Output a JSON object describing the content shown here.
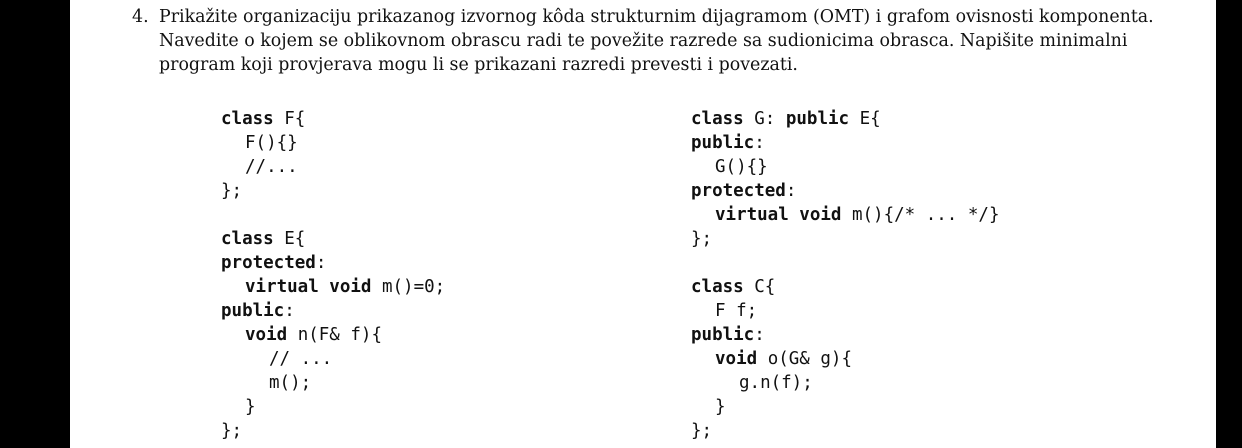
{
  "question": {
    "number": "4.",
    "lines": [
      "Prikažite organizaciju prikazanog izvornog kôda strukturnim dijagramom (OMT) i grafom ovisnosti komponenta.",
      "Navedite o kojem se oblikovnom obrascu radi te povežite razrede sa sudionicima obrasca. Napišite minimalni",
      "program koji provjerava mogu li se prikazani razredi prevesti i povezati."
    ]
  },
  "code_left": [
    {
      "indent": 0,
      "parts": [
        {
          "t": "class",
          "k": true
        },
        {
          "t": " F{"
        }
      ]
    },
    {
      "indent": 1,
      "parts": [
        {
          "t": "F(){}"
        }
      ]
    },
    {
      "indent": 1,
      "parts": [
        {
          "t": "//..."
        }
      ]
    },
    {
      "indent": 0,
      "parts": [
        {
          "t": "};"
        }
      ]
    },
    {
      "indent": 0,
      "parts": [
        {
          "t": ""
        }
      ]
    },
    {
      "indent": 0,
      "parts": [
        {
          "t": "class",
          "k": true
        },
        {
          "t": " E{"
        }
      ]
    },
    {
      "indent": 0,
      "parts": [
        {
          "t": "protected",
          "k": true
        },
        {
          "t": ":"
        }
      ]
    },
    {
      "indent": 1,
      "parts": [
        {
          "t": "virtual void",
          "k": true
        },
        {
          "t": " m()=0;"
        }
      ]
    },
    {
      "indent": 0,
      "parts": [
        {
          "t": "public",
          "k": true
        },
        {
          "t": ":"
        }
      ]
    },
    {
      "indent": 1,
      "parts": [
        {
          "t": "void",
          "k": true
        },
        {
          "t": " n(F& f){"
        }
      ]
    },
    {
      "indent": 2,
      "parts": [
        {
          "t": "// ..."
        }
      ]
    },
    {
      "indent": 2,
      "parts": [
        {
          "t": "m();"
        }
      ]
    },
    {
      "indent": 1,
      "parts": [
        {
          "t": "}"
        }
      ]
    },
    {
      "indent": 0,
      "parts": [
        {
          "t": "};"
        }
      ]
    }
  ],
  "code_right": [
    {
      "indent": 0,
      "parts": [
        {
          "t": "class",
          "k": true
        },
        {
          "t": " G: "
        },
        {
          "t": "public",
          "k": true
        },
        {
          "t": " E{"
        }
      ]
    },
    {
      "indent": 0,
      "parts": [
        {
          "t": "public",
          "k": true
        },
        {
          "t": ":"
        }
      ]
    },
    {
      "indent": 1,
      "parts": [
        {
          "t": "G(){}"
        }
      ]
    },
    {
      "indent": 0,
      "parts": [
        {
          "t": "protected",
          "k": true
        },
        {
          "t": ":"
        }
      ]
    },
    {
      "indent": 1,
      "parts": [
        {
          "t": "virtual void",
          "k": true
        },
        {
          "t": " m(){/* ... */}"
        }
      ]
    },
    {
      "indent": 0,
      "parts": [
        {
          "t": "};"
        }
      ]
    },
    {
      "indent": 0,
      "parts": [
        {
          "t": ""
        }
      ]
    },
    {
      "indent": 0,
      "parts": [
        {
          "t": "class",
          "k": true
        },
        {
          "t": " C{"
        }
      ]
    },
    {
      "indent": 1,
      "parts": [
        {
          "t": "F f;"
        }
      ]
    },
    {
      "indent": 0,
      "parts": [
        {
          "t": "public",
          "k": true
        },
        {
          "t": ":"
        }
      ]
    },
    {
      "indent": 1,
      "parts": [
        {
          "t": "void",
          "k": true
        },
        {
          "t": " o(G& g){"
        }
      ]
    },
    {
      "indent": 2,
      "parts": [
        {
          "t": "g.n(f);"
        }
      ]
    },
    {
      "indent": 1,
      "parts": [
        {
          "t": "}"
        }
      ]
    },
    {
      "indent": 0,
      "parts": [
        {
          "t": "};"
        }
      ]
    }
  ]
}
